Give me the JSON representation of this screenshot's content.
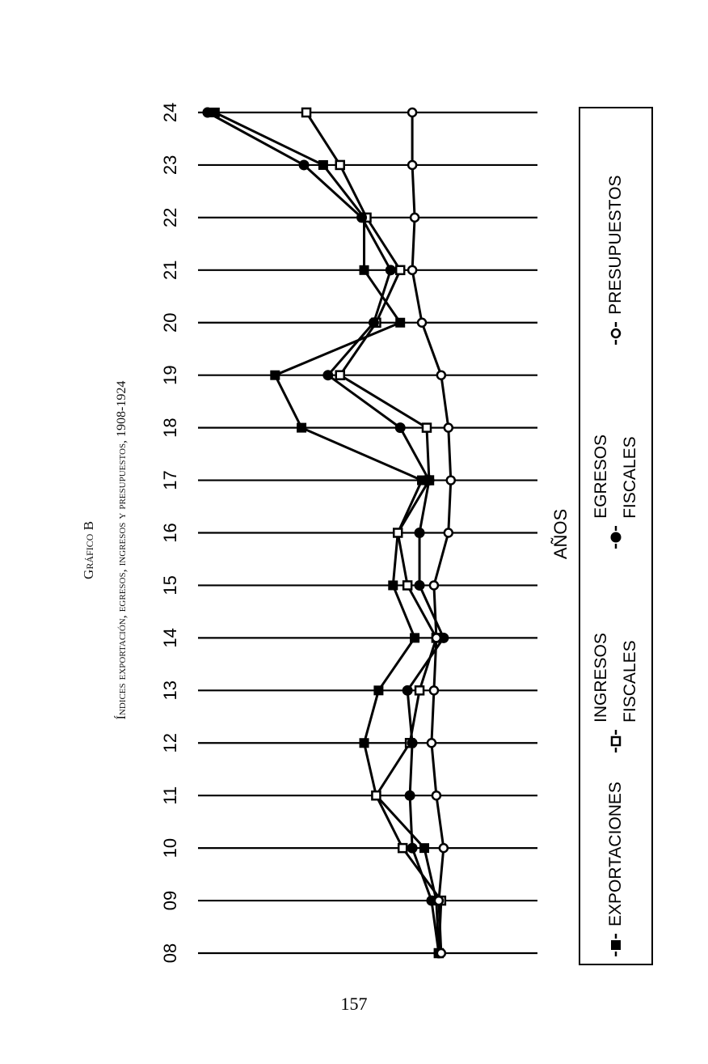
{
  "chart_data": {
    "type": "line",
    "orientation": "horizontal",
    "title": "Gráfico B",
    "subtitle": "Índices exportación, egresos, ingresos y presupuestos, 1908-1924",
    "x_label": "AÑOS",
    "categories": [
      "08",
      "09",
      "10",
      "11",
      "12",
      "13",
      "14",
      "15",
      "16",
      "17",
      "18",
      "19",
      "20",
      "21",
      "22",
      "23",
      "24"
    ],
    "xlim": [
      0,
      141
    ],
    "series": [
      {
        "name": "EXPORTACIONES",
        "color": "#000000",
        "marker": "filled-square",
        "values": [
          100,
          99,
          94,
          74,
          69,
          75,
          90,
          81,
          83,
          93,
          43,
          32,
          84,
          69,
          69,
          52,
          7
        ]
      },
      {
        "name": "INGRESOS FISCALES",
        "color": "#000000",
        "marker": "open-square",
        "values": [
          100,
          101,
          85,
          74,
          88,
          92,
          99,
          87,
          83,
          96,
          95,
          59,
          74,
          84,
          70,
          59,
          45
        ]
      },
      {
        "name": "EGRESOS FISCALES",
        "color": "#000000",
        "marker": "filled-circle",
        "values": [
          100,
          97,
          89,
          88,
          89,
          87,
          102,
          92,
          92,
          96,
          84,
          54,
          73,
          80,
          68,
          44,
          4
        ]
      },
      {
        "name": "PRESUPUESTOS",
        "color": "#000000",
        "marker": "open-circle",
        "values": [
          101,
          100,
          102,
          99,
          97,
          98,
          99,
          98,
          104,
          105,
          104,
          101,
          93,
          89,
          90,
          89,
          89
        ]
      }
    ]
  },
  "page_number": "157"
}
